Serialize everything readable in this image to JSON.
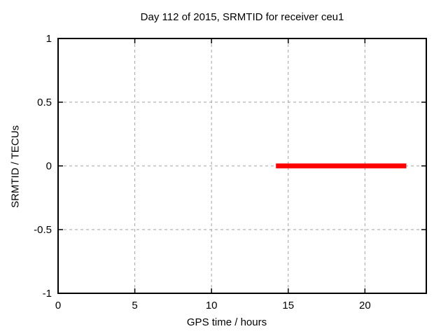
{
  "chart_data": {
    "type": "line",
    "title": "Day 112 of 2015, SRMTID for receiver ceu1",
    "xlabel": "GPS time / hours",
    "ylabel": "SRMTID / TECUs",
    "xlim": [
      0,
      24
    ],
    "ylim": [
      -1,
      1
    ],
    "x_ticks": {
      "values": [
        0,
        5,
        10,
        15,
        20
      ],
      "labels": [
        "0",
        "5",
        "10",
        "15",
        "20"
      ]
    },
    "y_ticks": {
      "values": [
        1,
        0.5,
        0,
        -0.5,
        -1
      ],
      "labels": [
        "1",
        "0.5",
        "0",
        "-0.5",
        "-1"
      ]
    },
    "grid": true,
    "grid_color": "#a0a0a0",
    "border_color": "#000000",
    "background_color": "#ffffff",
    "legend": "none",
    "series": [
      {
        "name": "SRMTID",
        "type": "line",
        "color": "#ff0000",
        "line_width": 7,
        "points": [
          [
            14.2,
            0
          ],
          [
            22.7,
            0
          ]
        ]
      }
    ]
  }
}
